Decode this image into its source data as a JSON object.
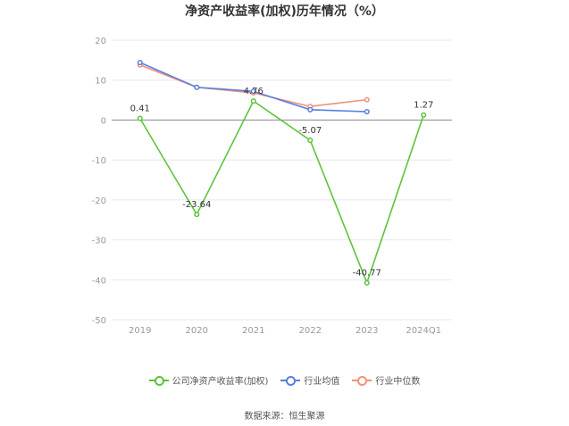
{
  "chart_data": {
    "type": "line",
    "title": "净资产收益率(加权)历年情况（%）",
    "categories": [
      "2019",
      "2020",
      "2021",
      "2022",
      "2023",
      "2024Q1"
    ],
    "ylim": [
      -50,
      20
    ],
    "yticks": [
      20,
      10,
      0,
      -10,
      -20,
      -30,
      -40,
      -50
    ],
    "grid": true,
    "legend_position": "bottom",
    "series": [
      {
        "name": "公司净资产收益率(加权)",
        "color": "#5cc43a",
        "values": [
          0.41,
          -23.64,
          4.76,
          -5.07,
          -40.77,
          1.27
        ],
        "labels": [
          "0.41",
          "-23.64",
          "4.76",
          "-5.07",
          "-40.77",
          "1.27"
        ]
      },
      {
        "name": "行业均值",
        "color": "#5b7fe0",
        "values": [
          14.4,
          8.2,
          7.2,
          2.6,
          2.1,
          null
        ]
      },
      {
        "name": "行业中位数",
        "color": "#f0917a",
        "values": [
          13.8,
          8.2,
          6.8,
          3.4,
          5.1,
          null
        ]
      }
    ],
    "source": "数据来源：恒生聚源"
  }
}
